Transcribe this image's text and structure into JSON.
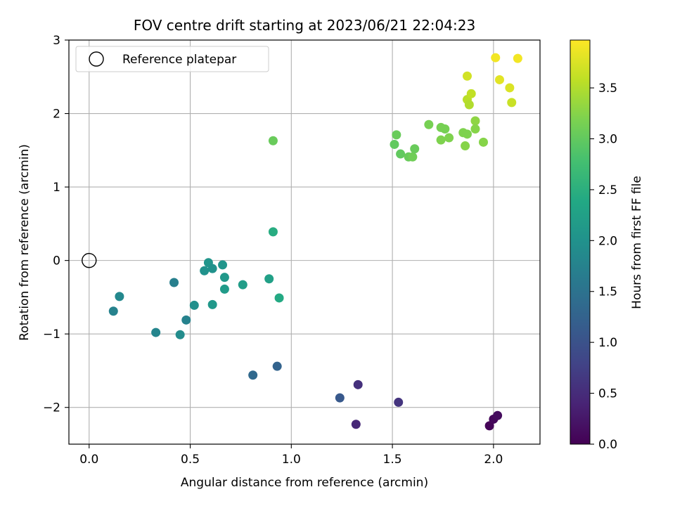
{
  "chart_data": {
    "type": "scatter",
    "title": "FOV centre drift starting at 2023/06/21 22:04:23",
    "xlabel": "Angular distance from reference (arcmin)",
    "ylabel": "Rotation from reference (arcmin)",
    "xlim": [
      -0.1,
      2.23
    ],
    "ylim": [
      -2.5,
      3
    ],
    "x_ticks": [
      0.0,
      0.5,
      1.0,
      1.5,
      2.0
    ],
    "x_tick_labels": [
      "0.0",
      "0.5",
      "1.0",
      "1.5",
      "2.0"
    ],
    "y_ticks": [
      -2,
      -1,
      0,
      1,
      2,
      3
    ],
    "y_tick_labels": [
      "−2",
      "−1",
      "0",
      "1",
      "2",
      "3"
    ],
    "grid": true,
    "legend": {
      "placement": "top-left",
      "entries": [
        "Reference platepar"
      ]
    },
    "reference_point": {
      "x": 0.0,
      "y": 0.0
    },
    "colorbar": {
      "label": "Hours from first FF file",
      "colormap": "viridis",
      "range": [
        0.0,
        3.97
      ],
      "ticks": [
        0.0,
        0.5,
        1.0,
        1.5,
        2.0,
        2.5,
        3.0,
        3.5
      ],
      "tick_labels": [
        "0.0",
        "0.5",
        "1.0",
        "1.5",
        "2.0",
        "2.5",
        "3.0",
        "3.5"
      ]
    },
    "points": [
      {
        "x": 1.98,
        "y": -2.25,
        "c": 0.05
      },
      {
        "x": 2.0,
        "y": -2.16,
        "c": 0.08
      },
      {
        "x": 2.02,
        "y": -2.11,
        "c": 0.12
      },
      {
        "x": 1.32,
        "y": -2.23,
        "c": 0.45
      },
      {
        "x": 1.33,
        "y": -1.69,
        "c": 0.55
      },
      {
        "x": 1.53,
        "y": -1.93,
        "c": 0.6
      },
      {
        "x": 1.24,
        "y": -1.87,
        "c": 1.1
      },
      {
        "x": 0.81,
        "y": -1.56,
        "c": 1.35
      },
      {
        "x": 0.93,
        "y": -1.44,
        "c": 1.25
      },
      {
        "x": 0.12,
        "y": -0.69,
        "c": 1.75
      },
      {
        "x": 0.15,
        "y": -0.49,
        "c": 1.85
      },
      {
        "x": 0.33,
        "y": -0.98,
        "c": 1.8
      },
      {
        "x": 0.42,
        "y": -0.3,
        "c": 1.7
      },
      {
        "x": 0.45,
        "y": -1.01,
        "c": 1.9
      },
      {
        "x": 0.48,
        "y": -0.81,
        "c": 1.75
      },
      {
        "x": 0.52,
        "y": -0.61,
        "c": 1.95
      },
      {
        "x": 0.57,
        "y": -0.14,
        "c": 2.0
      },
      {
        "x": 0.59,
        "y": -0.03,
        "c": 2.05
      },
      {
        "x": 0.61,
        "y": -0.11,
        "c": 2.0
      },
      {
        "x": 0.61,
        "y": -0.6,
        "c": 2.1
      },
      {
        "x": 0.66,
        "y": -0.06,
        "c": 2.05
      },
      {
        "x": 0.67,
        "y": -0.23,
        "c": 2.1
      },
      {
        "x": 0.67,
        "y": -0.39,
        "c": 2.15
      },
      {
        "x": 0.76,
        "y": -0.33,
        "c": 2.2
      },
      {
        "x": 0.89,
        "y": -0.25,
        "c": 2.25
      },
      {
        "x": 0.91,
        "y": 0.39,
        "c": 2.45
      },
      {
        "x": 0.94,
        "y": -0.51,
        "c": 2.4
      },
      {
        "x": 0.91,
        "y": 1.63,
        "c": 3.05
      },
      {
        "x": 1.51,
        "y": 1.58,
        "c": 3.0
      },
      {
        "x": 1.52,
        "y": 1.71,
        "c": 3.05
      },
      {
        "x": 1.54,
        "y": 1.45,
        "c": 3.0
      },
      {
        "x": 1.58,
        "y": 1.41,
        "c": 3.05
      },
      {
        "x": 1.6,
        "y": 1.41,
        "c": 3.1
      },
      {
        "x": 1.61,
        "y": 1.52,
        "c": 3.05
      },
      {
        "x": 1.68,
        "y": 1.85,
        "c": 3.15
      },
      {
        "x": 1.74,
        "y": 1.81,
        "c": 3.15
      },
      {
        "x": 1.74,
        "y": 1.64,
        "c": 3.2
      },
      {
        "x": 1.76,
        "y": 1.79,
        "c": 3.15
      },
      {
        "x": 1.78,
        "y": 1.67,
        "c": 3.2
      },
      {
        "x": 1.85,
        "y": 1.74,
        "c": 3.2
      },
      {
        "x": 1.86,
        "y": 1.56,
        "c": 3.25
      },
      {
        "x": 1.87,
        "y": 1.72,
        "c": 3.2
      },
      {
        "x": 1.91,
        "y": 1.9,
        "c": 3.3
      },
      {
        "x": 1.91,
        "y": 1.79,
        "c": 3.25
      },
      {
        "x": 1.95,
        "y": 1.61,
        "c": 3.25
      },
      {
        "x": 1.87,
        "y": 2.51,
        "c": 3.7
      },
      {
        "x": 1.87,
        "y": 2.19,
        "c": 3.55
      },
      {
        "x": 1.88,
        "y": 2.12,
        "c": 3.5
      },
      {
        "x": 1.89,
        "y": 2.27,
        "c": 3.6
      },
      {
        "x": 2.01,
        "y": 2.76,
        "c": 3.9
      },
      {
        "x": 2.03,
        "y": 2.46,
        "c": 3.8
      },
      {
        "x": 2.08,
        "y": 2.35,
        "c": 3.75
      },
      {
        "x": 2.09,
        "y": 2.15,
        "c": 3.65
      },
      {
        "x": 2.12,
        "y": 2.75,
        "c": 3.9
      }
    ]
  }
}
